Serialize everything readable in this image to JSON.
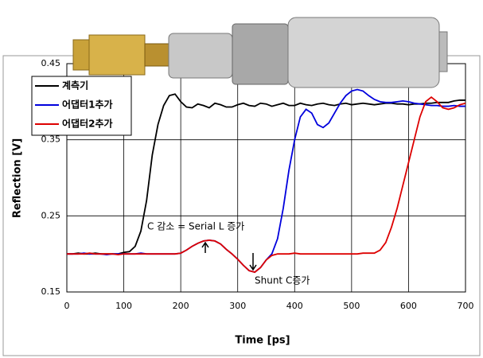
{
  "chart_data": {
    "type": "line",
    "x": [
      0,
      10,
      20,
      30,
      40,
      50,
      60,
      70,
      80,
      90,
      100,
      110,
      120,
      130,
      140,
      150,
      160,
      170,
      180,
      190,
      200,
      210,
      220,
      230,
      240,
      250,
      260,
      270,
      280,
      290,
      300,
      310,
      320,
      330,
      340,
      350,
      360,
      370,
      380,
      390,
      400,
      410,
      420,
      430,
      440,
      450,
      460,
      470,
      480,
      490,
      500,
      510,
      520,
      530,
      540,
      550,
      560,
      570,
      580,
      590,
      600,
      610,
      620,
      630,
      640,
      650,
      660,
      670,
      680,
      690,
      700
    ],
    "series": [
      {
        "name": "계측기",
        "color": "#000000",
        "values": [
          0.2,
          0.2,
          0.201,
          0.2,
          0.2,
          0.201,
          0.2,
          0.2,
          0.2,
          0.2,
          0.202,
          0.203,
          0.21,
          0.23,
          0.27,
          0.33,
          0.37,
          0.395,
          0.408,
          0.41,
          0.4,
          0.393,
          0.392,
          0.397,
          0.395,
          0.392,
          0.398,
          0.396,
          0.393,
          0.393,
          0.396,
          0.398,
          0.395,
          0.394,
          0.398,
          0.397,
          0.394,
          0.396,
          0.398,
          0.395,
          0.395,
          0.398,
          0.396,
          0.395,
          0.397,
          0.398,
          0.396,
          0.395,
          0.397,
          0.398,
          0.396,
          0.397,
          0.398,
          0.397,
          0.396,
          0.397,
          0.398,
          0.398,
          0.397,
          0.397,
          0.396,
          0.397,
          0.397,
          0.398,
          0.398,
          0.399,
          0.399,
          0.399,
          0.401,
          0.402,
          0.402
        ]
      },
      {
        "name": "어댑터1추가",
        "color": "#0000dd",
        "values": [
          0.2,
          0.2,
          0.2,
          0.201,
          0.2,
          0.2,
          0.2,
          0.199,
          0.2,
          0.2,
          0.2,
          0.2,
          0.2,
          0.201,
          0.2,
          0.2,
          0.2,
          0.2,
          0.2,
          0.2,
          0.201,
          0.205,
          0.21,
          0.214,
          0.217,
          0.218,
          0.217,
          0.213,
          0.206,
          0.2,
          0.193,
          0.185,
          0.178,
          0.176,
          0.182,
          0.192,
          0.2,
          0.22,
          0.26,
          0.31,
          0.35,
          0.38,
          0.39,
          0.385,
          0.37,
          0.366,
          0.372,
          0.385,
          0.398,
          0.408,
          0.414,
          0.416,
          0.414,
          0.408,
          0.403,
          0.4,
          0.399,
          0.399,
          0.4,
          0.401,
          0.4,
          0.398,
          0.397,
          0.396,
          0.395,
          0.395,
          0.394,
          0.394,
          0.395,
          0.394,
          0.394
        ]
      },
      {
        "name": "어댑터2추가",
        "color": "#dd0000",
        "values": [
          0.2,
          0.2,
          0.2,
          0.2,
          0.201,
          0.2,
          0.2,
          0.2,
          0.2,
          0.199,
          0.2,
          0.2,
          0.2,
          0.2,
          0.2,
          0.2,
          0.2,
          0.2,
          0.2,
          0.2,
          0.201,
          0.205,
          0.21,
          0.214,
          0.217,
          0.218,
          0.217,
          0.213,
          0.206,
          0.2,
          0.193,
          0.185,
          0.178,
          0.176,
          0.182,
          0.192,
          0.198,
          0.2,
          0.2,
          0.2,
          0.201,
          0.2,
          0.2,
          0.2,
          0.2,
          0.2,
          0.2,
          0.2,
          0.2,
          0.2,
          0.2,
          0.2,
          0.201,
          0.201,
          0.201,
          0.205,
          0.215,
          0.235,
          0.26,
          0.29,
          0.32,
          0.35,
          0.38,
          0.4,
          0.406,
          0.4,
          0.392,
          0.39,
          0.392,
          0.396,
          0.398
        ]
      }
    ],
    "xlabel": "Time [ps]",
    "ylabel": "Reflection [V]",
    "xlim": [
      0,
      700
    ],
    "xticks": [
      0,
      100,
      200,
      300,
      400,
      500,
      600,
      700
    ],
    "ylim": [
      0.15,
      0.45
    ],
    "yticks": [
      0.15,
      0.25,
      0.35,
      0.45
    ],
    "grid": true,
    "legend": "upper left",
    "annotations": [
      "C 감소 = Serial L 증가",
      "Shunt C증가"
    ]
  }
}
